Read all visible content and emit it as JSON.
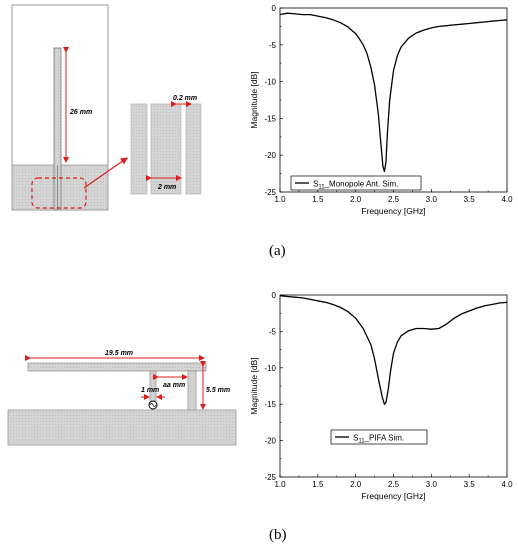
{
  "panels": {
    "a": {
      "caption": "(a)",
      "diagram": {
        "length_label": "26 mm",
        "gap_label": "0.2 mm",
        "width_label": "2 mm"
      }
    },
    "b": {
      "caption": "(b)",
      "diagram": {
        "top_label": "19.5 mm",
        "height_label": "5.5 mm",
        "aa_label": "aa mm",
        "feed_label": "1 mm"
      }
    }
  },
  "chart_data": [
    {
      "type": "line",
      "xlabel": "Frequency [GHz]",
      "ylabel": "Magnitude [dB]",
      "xlim": [
        1.0,
        4.0
      ],
      "ylim": [
        -25,
        0
      ],
      "xticks": [
        "1.0",
        "1.5",
        "2.0",
        "2.5",
        "3.0",
        "3.5",
        "4.0"
      ],
      "yticks": [
        "0",
        "-5",
        "-10",
        "-15",
        "-20",
        "-25"
      ],
      "legend": "bottom-right",
      "series": [
        {
          "name_main": "S",
          "name_sub": "11",
          "name_rest": "_Monopole Ant. Sim.",
          "x": [
            1.0,
            1.1,
            1.2,
            1.3,
            1.4,
            1.5,
            1.6,
            1.7,
            1.8,
            1.9,
            2.0,
            2.05,
            2.1,
            2.15,
            2.2,
            2.25,
            2.3,
            2.33,
            2.36,
            2.38,
            2.4,
            2.42,
            2.45,
            2.5,
            2.55,
            2.6,
            2.7,
            2.8,
            2.9,
            3.0,
            3.1,
            3.2,
            3.3,
            3.4,
            3.5,
            3.6,
            3.7,
            3.8,
            3.9,
            4.0
          ],
          "y": [
            -0.9,
            -0.7,
            -0.8,
            -0.9,
            -0.9,
            -1.1,
            -1.3,
            -1.6,
            -2.0,
            -2.6,
            -3.5,
            -4.2,
            -5.0,
            -6.2,
            -8.0,
            -10.5,
            -14.5,
            -18.0,
            -21.5,
            -22.2,
            -21.0,
            -17.0,
            -12.5,
            -8.5,
            -6.5,
            -5.3,
            -4.1,
            -3.4,
            -3.0,
            -2.7,
            -2.5,
            -2.4,
            -2.3,
            -2.2,
            -2.1,
            -2.0,
            -1.9,
            -1.8,
            -1.7,
            -1.6
          ]
        }
      ]
    },
    {
      "type": "line",
      "xlabel": "Frequency [GHz]",
      "ylabel": "Magnitude [dB]",
      "xlim": [
        1.0,
        4.0
      ],
      "ylim": [
        -25,
        0
      ],
      "xticks": [
        "1.0",
        "1.5",
        "2.0",
        "2.5",
        "3.0",
        "3.5",
        "4.0"
      ],
      "yticks": [
        "0",
        "-5",
        "-10",
        "-15",
        "-20",
        "-25"
      ],
      "legend": "lower-middle",
      "series": [
        {
          "name_main": "S",
          "name_sub": "11",
          "name_rest": "_PIFA Sim.",
          "x": [
            1.0,
            1.1,
            1.2,
            1.3,
            1.4,
            1.5,
            1.6,
            1.7,
            1.8,
            1.9,
            2.0,
            2.1,
            2.2,
            2.25,
            2.3,
            2.35,
            2.38,
            2.4,
            2.43,
            2.46,
            2.5,
            2.55,
            2.6,
            2.7,
            2.8,
            2.9,
            3.0,
            3.1,
            3.2,
            3.3,
            3.4,
            3.5,
            3.6,
            3.7,
            3.8,
            3.9,
            4.0
          ],
          "y": [
            -0.1,
            -0.2,
            -0.3,
            -0.4,
            -0.6,
            -0.8,
            -1.0,
            -1.3,
            -1.7,
            -2.3,
            -3.2,
            -4.6,
            -6.8,
            -8.8,
            -11.5,
            -14.0,
            -15.0,
            -14.8,
            -13.0,
            -10.5,
            -8.0,
            -6.5,
            -5.6,
            -4.9,
            -4.6,
            -4.6,
            -4.7,
            -4.6,
            -4.0,
            -3.2,
            -2.6,
            -2.2,
            -1.8,
            -1.5,
            -1.3,
            -1.1,
            -1.0
          ]
        }
      ]
    }
  ]
}
